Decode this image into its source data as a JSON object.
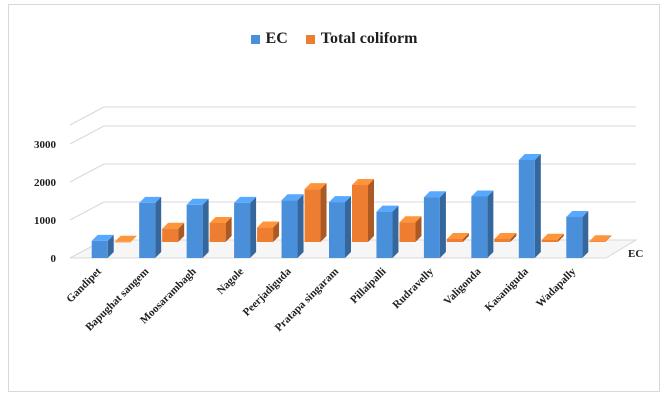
{
  "chart_data": {
    "type": "bar",
    "style": "3d-clustered-column",
    "categories": [
      "Gandipet",
      "Bapughat sangem",
      "Moosarambagh",
      "Nagole",
      "Peerjadiguda",
      "Pratapa singaram",
      "Pillaipalli",
      "Rudravelly",
      "Valigonda",
      "Kasaniguda",
      "Wadapally"
    ],
    "series": [
      {
        "name": "EC",
        "color": "#4a8fd9",
        "values": [
          450,
          1450,
          1400,
          1450,
          1520,
          1470,
          1220,
          1600,
          1620,
          2580,
          1080
        ]
      },
      {
        "name": "Total coliform",
        "color": "#ed7d31",
        "values": [
          5,
          350,
          500,
          380,
          1390,
          1500,
          520,
          80,
          80,
          60,
          20
        ]
      }
    ],
    "yticks": [
      0,
      1000,
      2000,
      3000
    ],
    "ylim": [
      0,
      3500
    ],
    "depth_axis_label": "EC",
    "legend_position": "top",
    "grid": true
  }
}
